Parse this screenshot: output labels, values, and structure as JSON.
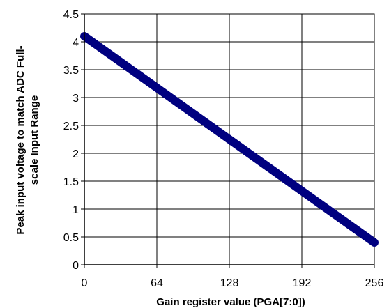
{
  "chart_data": {
    "type": "line",
    "xlabel": "Gain register value (PGA[7:0])",
    "ylabel_line1": "Peak input voltage to match ADC Full-",
    "ylabel_line2": "scale Input Range",
    "xlim": [
      0,
      256
    ],
    "ylim": [
      0,
      4.5
    ],
    "x_ticks": [
      0,
      64,
      128,
      192,
      256
    ],
    "y_ticks": [
      0,
      0.5,
      1,
      1.5,
      2,
      2.5,
      3,
      3.5,
      4,
      4.5
    ],
    "y_tick_labels": [
      "0",
      "0.5",
      "1",
      "1.5",
      "2",
      "2.5",
      "3",
      "3.5",
      "4",
      "4.5"
    ],
    "grid": true,
    "legend": "none",
    "series": [
      {
        "color": "#000080",
        "x": [
          0,
          256
        ],
        "y": [
          4.1,
          0.4
        ]
      }
    ]
  }
}
